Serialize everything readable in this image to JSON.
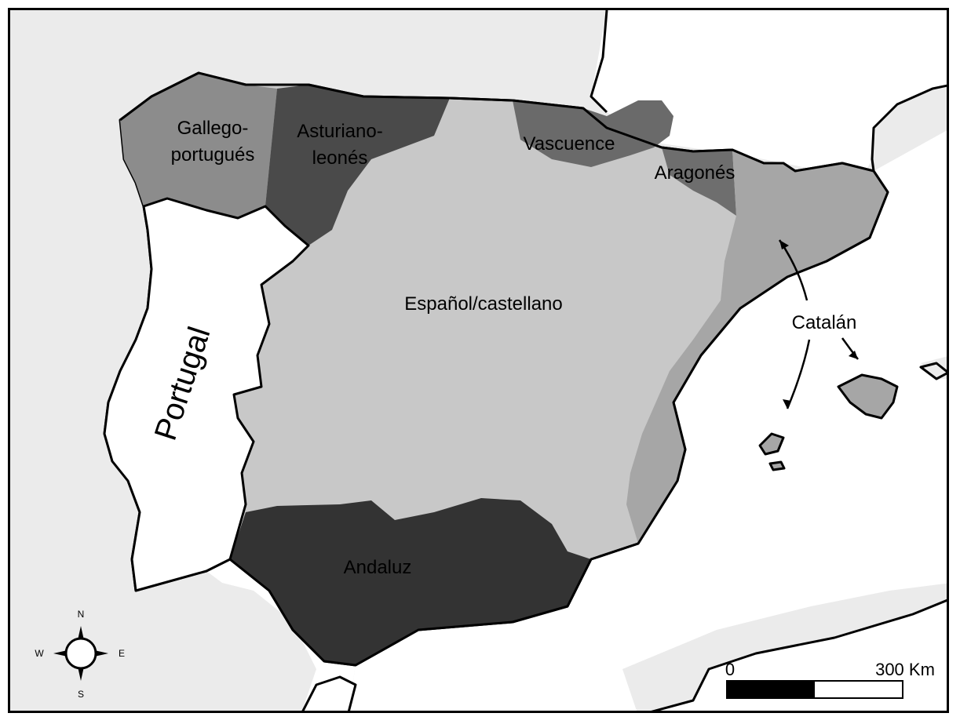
{
  "regions": [
    {
      "id": "gallego",
      "lines": [
        "Gallego-",
        "portugués"
      ],
      "shade": "#8c8c8c"
    },
    {
      "id": "asturiano",
      "lines": [
        "Asturiano-",
        "leonés"
      ],
      "shade": "#4a4a4a"
    },
    {
      "id": "vascuence",
      "lines": [
        "Vascuence"
      ],
      "shade": "#6a6a6a"
    },
    {
      "id": "aragones",
      "lines": [
        "Aragonés"
      ],
      "shade": "#6e6e6e"
    },
    {
      "id": "espanol",
      "lines": [
        "Español/castellano"
      ],
      "shade": "#c8c8c8"
    },
    {
      "id": "catalan",
      "lines": [
        "Catalán"
      ],
      "shade": "#a6a6a6"
    },
    {
      "id": "andaluz",
      "lines": [
        "Andaluz"
      ],
      "shade": "#333333"
    }
  ],
  "country": {
    "label": "Portugal",
    "shade": "#ffffff"
  },
  "compass": {
    "north": "N",
    "south": "S",
    "east": "E",
    "west": "W"
  },
  "scale_bar": {
    "start_label": "0",
    "end_label": "300 Km"
  },
  "colors": {
    "sea": "#ffffff",
    "neighbor_land": "#ebebeb",
    "coastline": "#000000"
  }
}
